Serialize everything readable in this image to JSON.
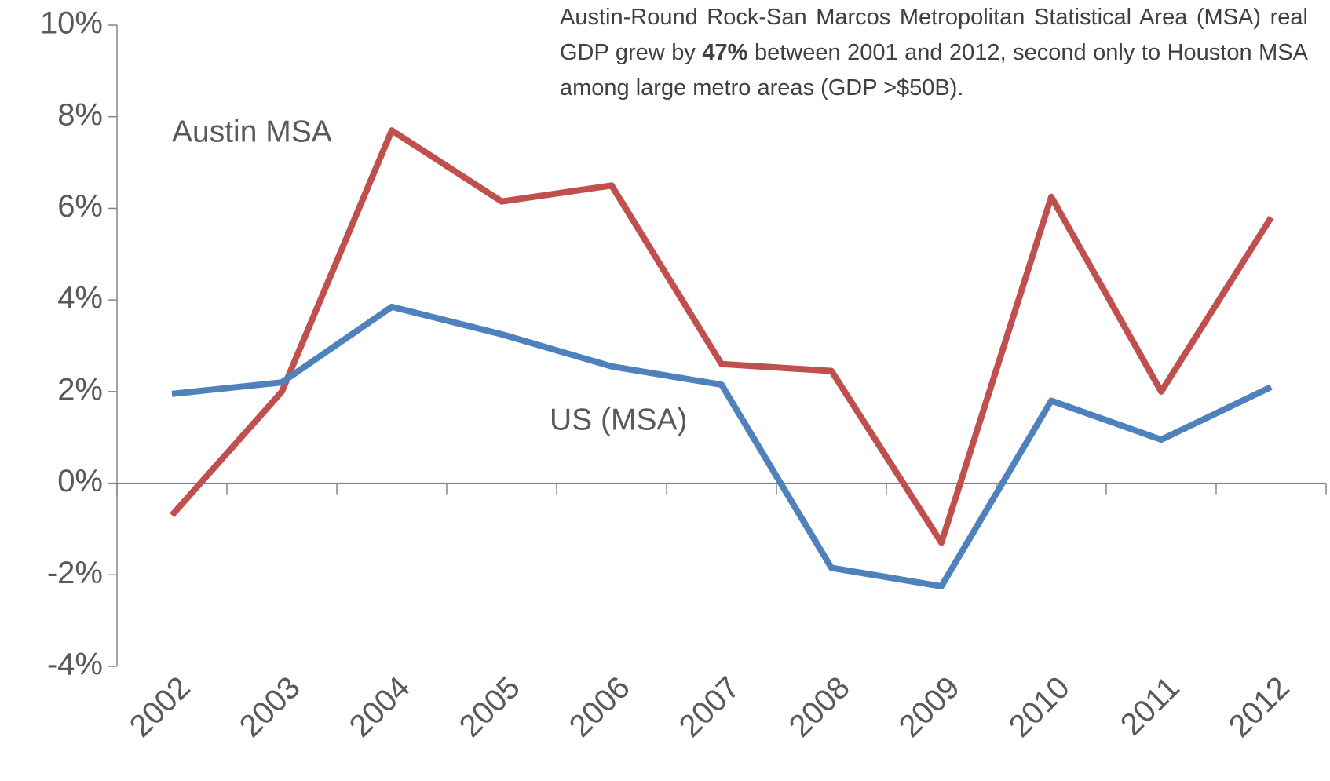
{
  "chart_data": {
    "type": "line",
    "annotation": {
      "before": "Austin-Round Rock-San Marcos Metropolitan Statistical Area (MSA) real GDP grew by ",
      "bold": "47%",
      "after": " between 2001 and 2012, second only to Houston MSA among large metro areas (GDP >$50B)."
    },
    "categories": [
      "2002",
      "2003",
      "2004",
      "2005",
      "2006",
      "2007",
      "2008",
      "2009",
      "2010",
      "2011",
      "2012"
    ],
    "series": [
      {
        "name": "Austin MSA",
        "color": "#c0504d",
        "values": [
          -0.7,
          2.0,
          7.7,
          6.15,
          6.5,
          2.6,
          2.45,
          -1.3,
          6.25,
          2.0,
          5.8
        ]
      },
      {
        "name": "US (MSA)",
        "color": "#4f81bd",
        "values": [
          1.95,
          2.2,
          3.85,
          3.25,
          2.55,
          2.15,
          -1.85,
          -2.25,
          1.8,
          0.95,
          2.1
        ]
      }
    ],
    "ylim": [
      -4,
      10
    ],
    "yticks": [
      {
        "value": -4,
        "label": "-4%"
      },
      {
        "value": -2,
        "label": "-2%"
      },
      {
        "value": 0,
        "label": "0%"
      },
      {
        "value": 2,
        "label": "2%"
      },
      {
        "value": 4,
        "label": "4%"
      },
      {
        "value": 6,
        "label": "6%"
      },
      {
        "value": 8,
        "label": "8%"
      },
      {
        "value": 10,
        "label": "10%"
      }
    ],
    "grid": false
  }
}
